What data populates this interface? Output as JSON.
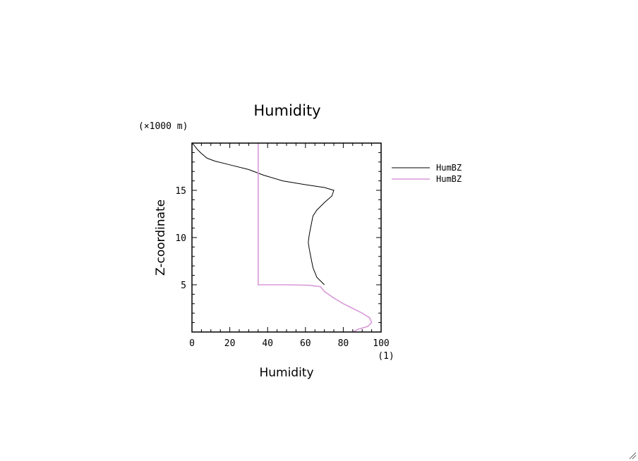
{
  "chart_data": {
    "type": "line",
    "title": "Humidity",
    "xlabel": "Humidity",
    "ylabel": "Z-coordinate",
    "x_unit": "(1)",
    "y_unit": "(×1000 m)",
    "xlim": [
      0,
      100
    ],
    "ylim": [
      0,
      20
    ],
    "x_ticks": [
      0,
      20,
      40,
      60,
      80,
      100
    ],
    "y_ticks": [
      5,
      10,
      15
    ],
    "grid": false,
    "legend_position": "right",
    "series": [
      {
        "name": "HumBZ",
        "color": "#000000",
        "points": [
          [
            70,
            5.0
          ],
          [
            66,
            5.8
          ],
          [
            64,
            6.8
          ],
          [
            63,
            7.8
          ],
          [
            62,
            8.8
          ],
          [
            61.5,
            9.5
          ],
          [
            62,
            10.3
          ],
          [
            63,
            11.3
          ],
          [
            64,
            12.3
          ],
          [
            66,
            12.9
          ],
          [
            70,
            13.7
          ],
          [
            74,
            14.4
          ],
          [
            75,
            15.0
          ],
          [
            70,
            15.3
          ],
          [
            60,
            15.6
          ],
          [
            48,
            16.0
          ],
          [
            38,
            16.6
          ],
          [
            30,
            17.2
          ],
          [
            20,
            17.7
          ],
          [
            12,
            18.1
          ],
          [
            8,
            18.4
          ],
          [
            5,
            18.9
          ],
          [
            3,
            19.3
          ],
          [
            1,
            19.8
          ],
          [
            0,
            20.0
          ]
        ]
      },
      {
        "name": "HumBZ",
        "color": "#d99ad9",
        "points": [
          [
            85,
            0.0
          ],
          [
            88,
            0.3
          ],
          [
            93,
            0.6
          ],
          [
            95,
            1.0
          ],
          [
            94,
            1.5
          ],
          [
            90,
            2.0
          ],
          [
            85,
            2.5
          ],
          [
            80,
            3.0
          ],
          [
            75,
            3.6
          ],
          [
            70,
            4.3
          ],
          [
            68,
            4.8
          ],
          [
            62,
            4.95
          ],
          [
            50,
            5.0
          ],
          [
            35,
            5.0
          ],
          [
            35,
            10.0
          ],
          [
            35,
            15.0
          ],
          [
            35,
            20.0
          ]
        ]
      }
    ]
  },
  "icons": {
    "resize_grip": "resize-grip-icon"
  }
}
